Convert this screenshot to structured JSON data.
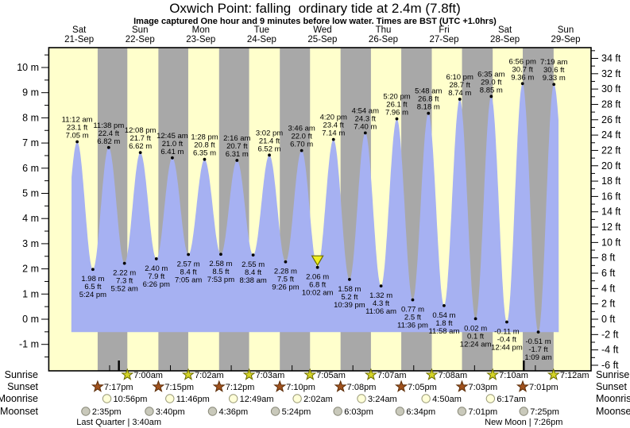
{
  "title": "Oxwich Point: falling  ordinary tide at 2.4m (7.8ft)",
  "subtitle": "Image captured One hour and 9 minutes before low water. Times are BST (UTC +1.0hrs)",
  "colors": {
    "day_band": "#ffffcc",
    "night_band": "#a8a8a8",
    "tide_fill": "#a6b1f2",
    "day_label_red": "#ee1c1c",
    "sunrise_star_fill": "#d4d427",
    "sunrise_star_stroke": "#6b6b00",
    "sunset_star_fill": "#a0521e",
    "sunset_star_stroke": "#5c2d08",
    "moonrise_fill": "#ffffd8",
    "moonrise_stroke": "#999977",
    "moonset_fill": "#c9c9bb",
    "moonset_stroke": "#888878",
    "current_marker_fill": "#f0ee20",
    "current_marker_stroke": "#6b6b00",
    "axis": "#000000"
  },
  "chart_data": {
    "type": "area",
    "title": "Oxwich Point: falling  ordinary tide at 2.4m (7.8ft)",
    "x_axis": {
      "days": [
        {
          "name": "Sat",
          "date": "21-Sep"
        },
        {
          "name": "Sun",
          "date": "22-Sep"
        },
        {
          "name": "Mon",
          "date": "23-Sep"
        },
        {
          "name": "Tue",
          "date": "24-Sep"
        },
        {
          "name": "Wed",
          "date": "25-Sep"
        },
        {
          "name": "Thu",
          "date": "26-Sep"
        },
        {
          "name": "Fri",
          "date": "27-Sep"
        },
        {
          "name": "Sat",
          "date": "28-Sep"
        },
        {
          "name": "Sun",
          "date": "29-Sep"
        }
      ]
    },
    "y_axis_left": {
      "unit": "m",
      "min": -1,
      "max": 10,
      "major_step": 1,
      "minor_step": 0.5
    },
    "y_axis_right": {
      "unit": "ft",
      "min": -6,
      "max": 34,
      "major_step": 2,
      "minor_step": 1
    },
    "high_tides": [
      {
        "day": 0,
        "time": "11:12 am",
        "ft": 23.1,
        "m": 7.05
      },
      {
        "day": 0,
        "time": "11:38 pm",
        "ft": 22.4,
        "m": 6.82
      },
      {
        "day": 1,
        "time": "12:08 pm",
        "ft": 21.7,
        "m": 6.62
      },
      {
        "day": 2,
        "time": "12:45 am",
        "ft": 21.0,
        "m": 6.41
      },
      {
        "day": 2,
        "time": "1:28 pm",
        "ft": 20.8,
        "m": 6.35
      },
      {
        "day": 3,
        "time": "2:16 am",
        "ft": 20.7,
        "m": 6.31
      },
      {
        "day": 3,
        "time": "3:02 pm",
        "ft": 21.4,
        "m": 6.52
      },
      {
        "day": 4,
        "time": "3:46 am",
        "ft": 22.0,
        "m": 6.7
      },
      {
        "day": 4,
        "time": "4:20 pm",
        "ft": 23.4,
        "m": 7.14
      },
      {
        "day": 5,
        "time": "4:54 am",
        "ft": 24.3,
        "m": 7.4
      },
      {
        "day": 5,
        "time": "5:20 pm",
        "ft": 26.1,
        "m": 7.96
      },
      {
        "day": 6,
        "time": "5:48 am",
        "ft": 26.8,
        "m": 8.18
      },
      {
        "day": 6,
        "time": "6:10 pm",
        "ft": 28.7,
        "m": 8.74
      },
      {
        "day": 7,
        "time": "6:35 am",
        "ft": 29.0,
        "m": 8.85
      },
      {
        "day": 7,
        "time": "6:56 pm",
        "ft": 30.7,
        "m": 9.36
      },
      {
        "day": 8,
        "time": "7:19 am",
        "ft": 30.6,
        "m": 9.33
      }
    ],
    "low_tides": [
      {
        "day": 0,
        "time": "5:24 pm",
        "ft": 6.5,
        "m": 1.98
      },
      {
        "day": 1,
        "time": "5:52 am",
        "ft": 7.3,
        "m": 2.22
      },
      {
        "day": 1,
        "time": "6:26 pm",
        "ft": 7.9,
        "m": 2.4
      },
      {
        "day": 2,
        "time": "7:05 am",
        "ft": 8.4,
        "m": 2.57
      },
      {
        "day": 2,
        "time": "7:53 pm",
        "ft": 8.5,
        "m": 2.58
      },
      {
        "day": 3,
        "time": "8:38 am",
        "ft": 8.4,
        "m": 2.55
      },
      {
        "day": 3,
        "time": "9:26 pm",
        "ft": 7.5,
        "m": 2.28
      },
      {
        "day": 4,
        "time": "10:02 am",
        "ft": 6.8,
        "m": 2.06,
        "current": true
      },
      {
        "day": 4,
        "time": "10:39 pm",
        "ft": 5.2,
        "m": 1.58
      },
      {
        "day": 5,
        "time": "11:06 am",
        "ft": 4.3,
        "m": 1.32
      },
      {
        "day": 5,
        "time": "11:36 pm",
        "ft": 2.5,
        "m": 0.77
      },
      {
        "day": 6,
        "time": "11:58 am",
        "ft": 1.8,
        "m": 0.54
      },
      {
        "day": 7,
        "time": "12:24 am",
        "ft": 0.1,
        "m": 0.02
      },
      {
        "day": 7,
        "time": "12:44 pm",
        "ft": -0.4,
        "m": -0.11
      },
      {
        "day": 8,
        "time": "1:09 am",
        "ft": -1.7,
        "m": -0.51
      }
    ]
  },
  "astro": {
    "row_labels": [
      "Sunrise",
      "Sunset",
      "Moonrise",
      "Moonset"
    ],
    "sunrise": [
      {
        "day": 1,
        "time": "7:00am"
      },
      {
        "day": 2,
        "time": "7:02am"
      },
      {
        "day": 3,
        "time": "7:03am"
      },
      {
        "day": 4,
        "time": "7:05am"
      },
      {
        "day": 5,
        "time": "7:07am"
      },
      {
        "day": 6,
        "time": "7:08am"
      },
      {
        "day": 7,
        "time": "7:10am"
      },
      {
        "day": 8,
        "time": "7:12am"
      }
    ],
    "sunset": [
      {
        "day": 0,
        "time": "7:17pm"
      },
      {
        "day": 1,
        "time": "7:15pm"
      },
      {
        "day": 2,
        "time": "7:12pm"
      },
      {
        "day": 3,
        "time": "7:10pm"
      },
      {
        "day": 4,
        "time": "7:08pm"
      },
      {
        "day": 5,
        "time": "7:05pm"
      },
      {
        "day": 6,
        "time": "7:03pm"
      },
      {
        "day": 7,
        "time": "7:01pm"
      }
    ],
    "moonrise": [
      {
        "day": 0,
        "time": "10:56pm"
      },
      {
        "day": 1,
        "time": "11:46pm"
      },
      {
        "day": 3,
        "time": "12:49am"
      },
      {
        "day": 4,
        "time": "2:02am"
      },
      {
        "day": 5,
        "time": "3:24am"
      },
      {
        "day": 6,
        "time": "4:50am"
      },
      {
        "day": 7,
        "time": "6:17am"
      }
    ],
    "moonset": [
      {
        "day": 0,
        "time": "2:35pm"
      },
      {
        "day": 1,
        "time": "3:40pm"
      },
      {
        "day": 2,
        "time": "4:36pm"
      },
      {
        "day": 3,
        "time": "5:24pm"
      },
      {
        "day": 4,
        "time": "6:03pm"
      },
      {
        "day": 5,
        "time": "6:34pm"
      },
      {
        "day": 6,
        "time": "7:01pm"
      },
      {
        "day": 7,
        "time": "7:25pm"
      }
    ],
    "phases": [
      {
        "name": "Last Quarter",
        "time": "3:40am",
        "day": 1
      },
      {
        "name": "New Moon",
        "time": "7:26pm",
        "day": 7
      }
    ]
  }
}
